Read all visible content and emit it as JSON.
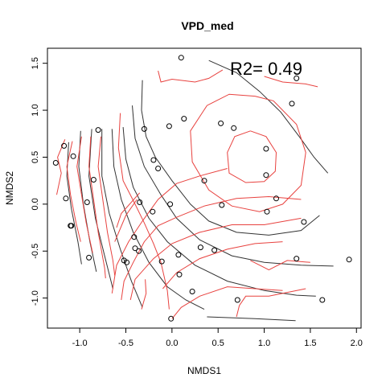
{
  "chart_data": {
    "type": "scatter",
    "title": "VPD_med",
    "xlabel": "NMDS1",
    "ylabel": "NMDS2",
    "annotation": "R2= 0.49",
    "xlim": [
      -1.35,
      2.05
    ],
    "ylim": [
      -1.32,
      1.66
    ],
    "xticks": [
      -1.0,
      -0.5,
      0.0,
      0.5,
      1.0,
      1.5,
      2.0
    ],
    "yticks": [
      -1.0,
      -0.5,
      0.0,
      0.5,
      1.0,
      1.5
    ],
    "xtick_labels": [
      "-1.0",
      "-0.5",
      "0.0",
      "0.5",
      "1.0",
      "1.5",
      "2.0"
    ],
    "ytick_labels": [
      "-1.0",
      "-0.5",
      "0.0",
      "0.5",
      "1.0",
      "1.5"
    ],
    "point_color": "#000000",
    "contour_colors": {
      "dark": "#333333",
      "red": "#e8423f"
    },
    "points": [
      [
        0.1,
        1.56
      ],
      [
        1.35,
        1.34
      ],
      [
        1.3,
        1.07
      ],
      [
        -0.8,
        0.79
      ],
      [
        -0.3,
        0.8
      ],
      [
        -0.03,
        0.83
      ],
      [
        0.13,
        0.91
      ],
      [
        0.53,
        0.86
      ],
      [
        0.67,
        0.81
      ],
      [
        1.02,
        0.59
      ],
      [
        -0.2,
        0.47
      ],
      [
        -0.15,
        0.38
      ],
      [
        1.02,
        0.31
      ],
      [
        -1.26,
        0.44
      ],
      [
        -1.17,
        0.62
      ],
      [
        -1.07,
        0.51
      ],
      [
        -0.85,
        0.26
      ],
      [
        0.35,
        0.25
      ],
      [
        1.13,
        0.06
      ],
      [
        -1.15,
        0.06
      ],
      [
        -0.92,
        0.02
      ],
      [
        -0.35,
        0.02
      ],
      [
        -0.02,
        0.0
      ],
      [
        0.54,
        -0.01
      ],
      [
        1.03,
        -0.08
      ],
      [
        -0.21,
        -0.08
      ],
      [
        1.43,
        -0.19
      ],
      [
        -1.1,
        -0.23
      ],
      [
        -1.09,
        -0.23
      ],
      [
        -0.41,
        -0.35
      ],
      [
        -0.4,
        -0.47
      ],
      [
        0.31,
        -0.46
      ],
      [
        -0.36,
        -0.5
      ],
      [
        0.46,
        -0.49
      ],
      [
        -0.9,
        -0.57
      ],
      [
        -0.52,
        -0.6
      ],
      [
        -0.49,
        -0.62
      ],
      [
        -0.11,
        -0.61
      ],
      [
        0.07,
        -0.54
      ],
      [
        1.35,
        -0.58
      ],
      [
        1.92,
        -0.59
      ],
      [
        0.08,
        -0.75
      ],
      [
        0.22,
        -0.93
      ],
      [
        0.71,
        -1.02
      ],
      [
        1.63,
        -1.02
      ],
      [
        -0.01,
        -1.22
      ]
    ],
    "contours_dark": [
      [
        [
          -0.32,
          1.32
        ],
        [
          -0.33,
          1.0
        ],
        [
          -0.28,
          0.72
        ],
        [
          -0.18,
          0.5
        ],
        [
          0.0,
          0.25
        ],
        [
          0.2,
          0.0
        ],
        [
          0.4,
          -0.18
        ],
        [
          0.7,
          -0.3
        ],
        [
          1.05,
          -0.33
        ],
        [
          1.4,
          -0.28
        ],
        [
          1.6,
          -0.12
        ]
      ],
      [
        [
          -0.43,
          1.05
        ],
        [
          -0.4,
          0.7
        ],
        [
          -0.3,
          0.4
        ],
        [
          -0.12,
          0.1
        ],
        [
          0.05,
          -0.15
        ],
        [
          0.3,
          -0.38
        ],
        [
          0.65,
          -0.55
        ],
        [
          1.0,
          -0.62
        ],
        [
          1.4,
          -0.65
        ],
        [
          1.75,
          -0.66
        ]
      ],
      [
        [
          -0.53,
          0.82
        ],
        [
          -0.5,
          0.48
        ],
        [
          -0.42,
          0.18
        ],
        [
          -0.25,
          -0.15
        ],
        [
          -0.05,
          -0.4
        ],
        [
          0.25,
          -0.65
        ],
        [
          0.6,
          -0.82
        ],
        [
          1.0,
          -0.92
        ],
        [
          1.35,
          -0.97
        ],
        [
          1.56,
          -0.98
        ]
      ],
      [
        [
          -0.65,
          0.8
        ],
        [
          -0.63,
          0.4
        ],
        [
          -0.55,
          0.05
        ],
        [
          -0.42,
          -0.3
        ],
        [
          -0.25,
          -0.62
        ],
        [
          -0.05,
          -0.88
        ],
        [
          0.15,
          -1.02
        ],
        [
          0.35,
          -1.12
        ]
      ],
      [
        [
          -0.76,
          0.8
        ],
        [
          -0.76,
          0.3
        ],
        [
          -0.68,
          -0.1
        ],
        [
          -0.56,
          -0.48
        ],
        [
          -0.44,
          -0.82
        ],
        [
          -0.32,
          -1.1
        ]
      ],
      [
        [
          -0.87,
          0.8
        ],
        [
          -0.9,
          0.3
        ],
        [
          -0.83,
          -0.15
        ],
        [
          -0.73,
          -0.55
        ],
        [
          -0.64,
          -0.9
        ]
      ],
      [
        [
          -0.99,
          0.78
        ],
        [
          -1.01,
          0.4
        ],
        [
          -0.96,
          0.0
        ],
        [
          -0.89,
          -0.4
        ],
        [
          -0.82,
          -0.72
        ]
      ],
      [
        [
          -1.12,
          0.66
        ],
        [
          -1.14,
          0.3
        ],
        [
          -1.09,
          -0.05
        ],
        [
          -1.02,
          -0.4
        ],
        [
          -0.98,
          -0.64
        ]
      ],
      [
        [
          0.4,
          1.53
        ],
        [
          0.7,
          1.4
        ],
        [
          0.95,
          1.2
        ],
        [
          1.18,
          0.98
        ],
        [
          1.38,
          0.72
        ],
        [
          1.54,
          0.5
        ],
        [
          1.69,
          0.33
        ]
      ],
      [
        [
          0.38,
          -1.2
        ],
        [
          0.9,
          -1.22
        ],
        [
          1.34,
          -1.24
        ]
      ]
    ],
    "contours_red": [
      [
        [
          -1.16,
          0.69
        ],
        [
          -1.24,
          0.5
        ],
        [
          -1.2,
          0.33
        ],
        [
          -1.25,
          0.1
        ]
      ],
      [
        [
          -1.08,
          0.67
        ],
        [
          -1.14,
          0.4
        ],
        [
          -1.1,
          0.1
        ],
        [
          -1.04,
          -0.2
        ],
        [
          -0.99,
          -0.4
        ]
      ],
      [
        [
          -0.98,
          0.72
        ],
        [
          -1.03,
          0.4
        ],
        [
          -0.98,
          0.1
        ],
        [
          -0.93,
          -0.2
        ],
        [
          -0.86,
          -0.52
        ]
      ],
      [
        [
          -0.88,
          0.72
        ],
        [
          -0.9,
          0.4
        ],
        [
          -0.85,
          0.05
        ],
        [
          -0.8,
          -0.3
        ],
        [
          -0.73,
          -0.68
        ],
        [
          -0.72,
          -0.79
        ]
      ],
      [
        [
          -0.77,
          0.72
        ],
        [
          -0.8,
          0.4
        ],
        [
          -0.75,
          0.05
        ],
        [
          -0.7,
          -0.3
        ],
        [
          -0.64,
          -0.6
        ],
        [
          -0.62,
          -0.76
        ]
      ],
      [
        [
          -0.56,
          0.97
        ],
        [
          -0.58,
          0.6
        ],
        [
          -0.53,
          0.25
        ],
        [
          -0.4,
          0.0
        ],
        [
          -0.3,
          -0.2
        ],
        [
          -0.2,
          -0.42
        ],
        [
          -0.12,
          -0.62
        ],
        [
          -0.05,
          -0.92
        ],
        [
          -0.03,
          -1.12
        ]
      ],
      [
        [
          -0.29,
          -0.8
        ],
        [
          -0.28,
          -0.95
        ],
        [
          -0.33,
          -1.12
        ]
      ],
      [
        [
          -0.55,
          -1.02
        ],
        [
          -0.52,
          -0.82
        ],
        [
          -0.42,
          -0.62
        ],
        [
          -0.3,
          -0.4
        ],
        [
          -0.15,
          -0.23
        ],
        [
          0.05,
          -0.14
        ],
        [
          0.35,
          -0.02
        ],
        [
          0.7,
          0.06
        ],
        [
          1.05,
          0.08
        ],
        [
          1.4,
          0.05
        ]
      ],
      [
        [
          -0.65,
          -0.95
        ],
        [
          -0.6,
          -0.65
        ],
        [
          -0.47,
          -0.4
        ],
        [
          -0.32,
          -0.18
        ],
        [
          -0.15,
          0.05
        ],
        [
          0.05,
          0.22
        ],
        [
          0.3,
          0.3
        ],
        [
          0.6,
          0.38
        ]
      ],
      [
        [
          -0.62,
          -0.4
        ],
        [
          -0.5,
          -0.12
        ],
        [
          -0.38,
          0.05
        ]
      ],
      [
        [
          -0.6,
          -0.25
        ],
        [
          -0.55,
          -0.1
        ],
        [
          -0.35,
          0.12
        ]
      ],
      [
        [
          -0.45,
          -1.02
        ],
        [
          -0.4,
          -0.8
        ],
        [
          -0.2,
          -0.58
        ],
        [
          0.0,
          -0.42
        ],
        [
          0.3,
          -0.3
        ],
        [
          0.65,
          -0.22
        ],
        [
          1.0,
          -0.22
        ],
        [
          1.4,
          -0.15
        ]
      ],
      [
        [
          -0.1,
          -0.9
        ],
        [
          0.05,
          -0.73
        ],
        [
          0.3,
          -0.58
        ],
        [
          0.6,
          -0.48
        ],
        [
          0.9,
          -0.42
        ],
        [
          1.2,
          -0.4
        ]
      ],
      [
        [
          0.0,
          -1.22
        ],
        [
          0.1,
          -1.1
        ],
        [
          0.3,
          -0.98
        ],
        [
          0.6,
          -0.88
        ],
        [
          0.9,
          -0.9
        ],
        [
          1.2,
          -0.92
        ]
      ],
      [
        [
          0.7,
          -1.2
        ],
        [
          0.73,
          -1.08
        ],
        [
          0.8,
          -0.98
        ],
        [
          1.05,
          -0.98
        ],
        [
          1.45,
          -0.9
        ]
      ],
      [
        [
          0.85,
          -0.6
        ],
        [
          1.05,
          -0.7
        ],
        [
          1.25,
          -0.6
        ],
        [
          1.5,
          -0.62
        ]
      ],
      [
        [
          -0.15,
          1.42
        ],
        [
          -0.12,
          1.3
        ],
        [
          0.0,
          1.33
        ],
        [
          0.25,
          1.3
        ],
        [
          0.4,
          1.34
        ],
        [
          0.55,
          1.43
        ]
      ],
      [
        [
          1.0,
          1.36
        ],
        [
          1.2,
          1.3
        ],
        [
          1.45,
          1.28
        ],
        [
          1.58,
          1.25
        ]
      ],
      [
        [
          0.9,
          1.15
        ],
        [
          1.1,
          1.1
        ],
        [
          1.35,
          0.85
        ],
        [
          1.45,
          0.55
        ],
        [
          1.4,
          0.2
        ],
        [
          1.2,
          0.0
        ],
        [
          0.95,
          -0.08
        ],
        [
          0.65,
          -0.02
        ],
        [
          0.4,
          0.15
        ],
        [
          0.22,
          0.45
        ],
        [
          0.2,
          0.78
        ],
        [
          0.38,
          1.05
        ],
        [
          0.62,
          1.17
        ],
        [
          0.9,
          1.15
        ]
      ],
      [
        [
          0.85,
          0.78
        ],
        [
          1.02,
          0.72
        ],
        [
          1.13,
          0.55
        ],
        [
          1.12,
          0.35
        ],
        [
          1.0,
          0.24
        ],
        [
          0.8,
          0.23
        ],
        [
          0.62,
          0.33
        ],
        [
          0.6,
          0.55
        ],
        [
          0.68,
          0.72
        ],
        [
          0.85,
          0.78
        ]
      ]
    ]
  }
}
